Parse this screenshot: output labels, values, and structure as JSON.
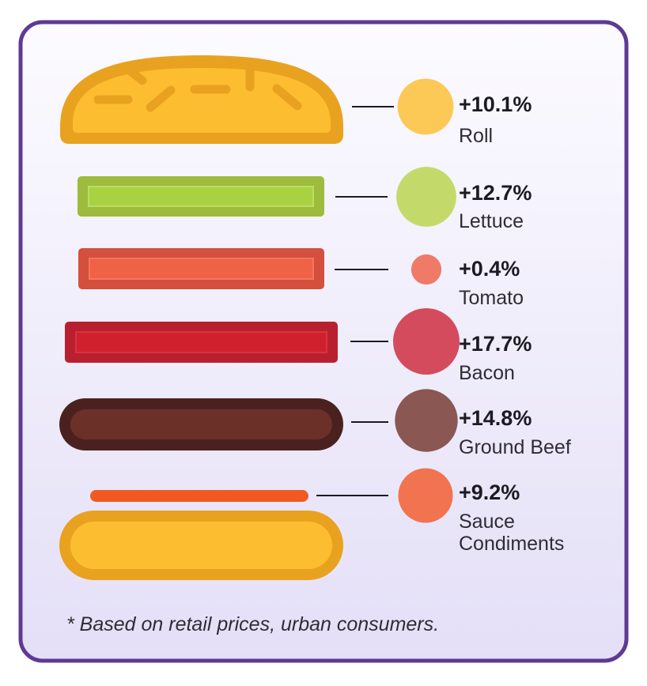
{
  "ingredients": [
    {
      "name": "Roll",
      "change_label": "+10.1%",
      "change_pct": 10.1,
      "color": "#fcc957"
    },
    {
      "name": "Lettuce",
      "change_label": "+12.7%",
      "change_pct": 12.7,
      "color": "#c3da6a"
    },
    {
      "name": "Tomato",
      "change_label": "+0.4%",
      "change_pct": 0.4,
      "color": "#f07a68"
    },
    {
      "name": "Bacon",
      "change_label": "+17.7%",
      "change_pct": 17.7,
      "color": "#d44b5e"
    },
    {
      "name": "Ground Beef",
      "change_label": "+14.8%",
      "change_pct": 14.8,
      "color": "#8a5752"
    },
    {
      "name_lines": [
        "Sauce",
        "Condiments"
      ],
      "change_label": "+9.2%",
      "change_pct": 9.2,
      "color": "#f1734f"
    }
  ],
  "footnote": "* Based on retail prices, urban consumers.",
  "colors": {
    "frame_border": "#5e3a93",
    "background_top": "#fcfbff",
    "background_bottom": "#e4dff7",
    "bun_fill": "#fcbe30",
    "bun_outline": "#e9a21f",
    "lettuce_fill": "#a9d243",
    "lettuce_outline": "#9dbb3c",
    "tomato_fill": "#f06246",
    "tomato_outline": "#d44f3d",
    "bacon_fill": "#d0202e",
    "bacon_outline": "#b9202f",
    "beef_fill": "#6b3129",
    "beef_outline": "#4b2120",
    "sauce_fill": "#f05a22"
  }
}
